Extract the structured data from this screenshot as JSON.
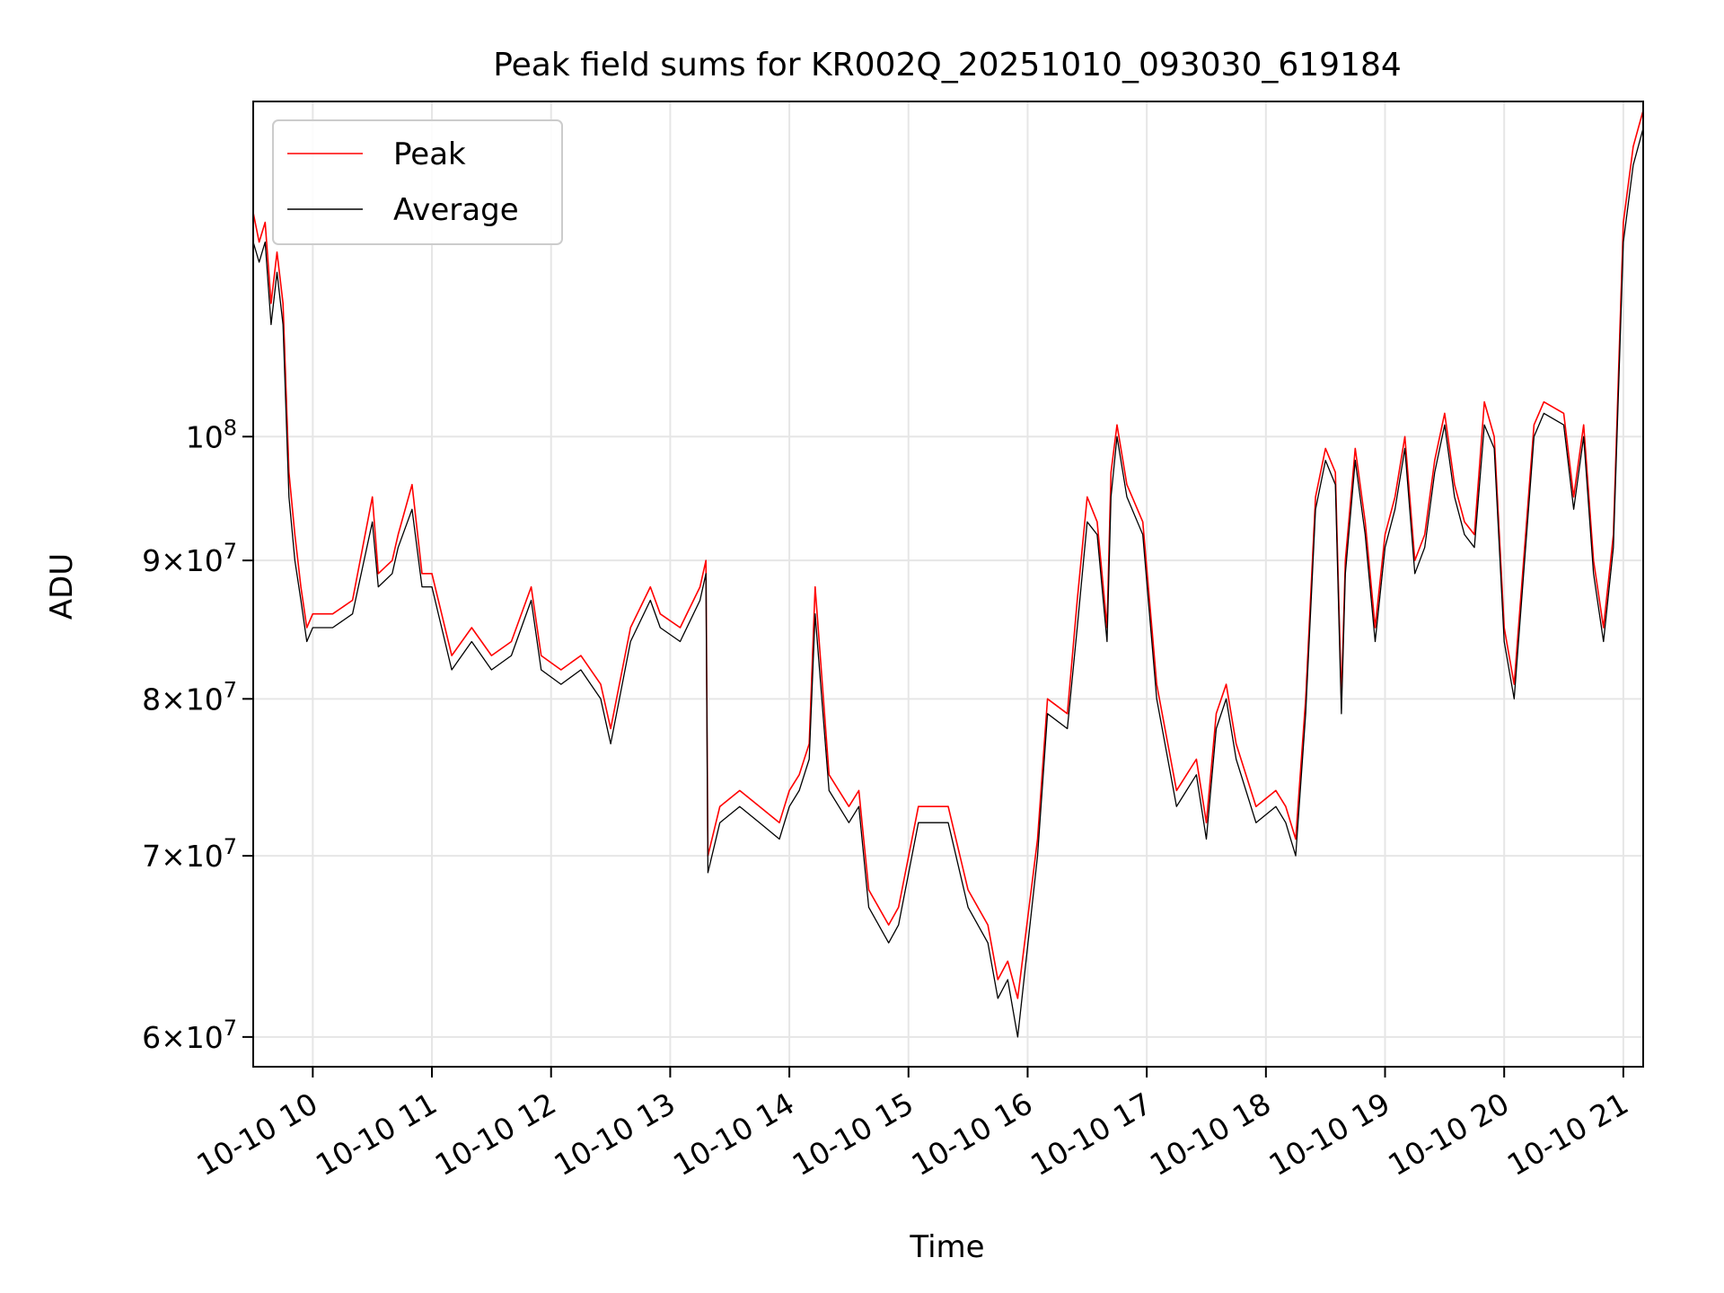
{
  "chart_data": {
    "type": "line",
    "title": "Peak field sums for KR002Q_20251010_093030_619184",
    "xlabel": "Time",
    "ylabel": "ADU",
    "y_scale": "log",
    "xlim": [
      "2025-10-10 09:30",
      "2025-10-10 21:10"
    ],
    "ylim": [
      58500000,
      133000000
    ],
    "grid": true,
    "legend_position": "upper-left",
    "x_ticks": [
      {
        "time": "2025-10-10 10:00",
        "label": "10-10 10"
      },
      {
        "time": "2025-10-10 11:00",
        "label": "10-10 11"
      },
      {
        "time": "2025-10-10 12:00",
        "label": "10-10 12"
      },
      {
        "time": "2025-10-10 13:00",
        "label": "10-10 13"
      },
      {
        "time": "2025-10-10 14:00",
        "label": "10-10 14"
      },
      {
        "time": "2025-10-10 15:00",
        "label": "10-10 15"
      },
      {
        "time": "2025-10-10 16:00",
        "label": "10-10 16"
      },
      {
        "time": "2025-10-10 17:00",
        "label": "10-10 17"
      },
      {
        "time": "2025-10-10 18:00",
        "label": "10-10 18"
      },
      {
        "time": "2025-10-10 19:00",
        "label": "10-10 19"
      },
      {
        "time": "2025-10-10 20:00",
        "label": "10-10 20"
      },
      {
        "time": "2025-10-10 21:00",
        "label": "10-10 21"
      }
    ],
    "y_ticks": [
      {
        "value": 60000000,
        "mantissa": "6",
        "exp": "7"
      },
      {
        "value": 70000000,
        "mantissa": "7",
        "exp": "7"
      },
      {
        "value": 80000000,
        "mantissa": "8",
        "exp": "7"
      },
      {
        "value": 90000000,
        "mantissa": "9",
        "exp": "7"
      },
      {
        "value": 100000000,
        "mantissa": "",
        "exp": "8"
      }
    ],
    "series": [
      {
        "name": "Peak",
        "color": "#ff0000",
        "x": [
          "2025-10-10 09:30",
          "2025-10-10 09:33",
          "2025-10-10 09:36",
          "2025-10-10 09:39",
          "2025-10-10 09:42",
          "2025-10-10 09:45",
          "2025-10-10 09:48",
          "2025-10-10 09:51",
          "2025-10-10 09:54",
          "2025-10-10 09:57",
          "2025-10-10 10:00",
          "2025-10-10 10:10",
          "2025-10-10 10:20",
          "2025-10-10 10:30",
          "2025-10-10 10:33",
          "2025-10-10 10:40",
          "2025-10-10 10:43",
          "2025-10-10 10:50",
          "2025-10-10 10:55",
          "2025-10-10 11:00",
          "2025-10-10 11:10",
          "2025-10-10 11:20",
          "2025-10-10 11:30",
          "2025-10-10 11:40",
          "2025-10-10 11:50",
          "2025-10-10 11:55",
          "2025-10-10 12:05",
          "2025-10-10 12:15",
          "2025-10-10 12:25",
          "2025-10-10 12:30",
          "2025-10-10 12:40",
          "2025-10-10 12:50",
          "2025-10-10 12:55",
          "2025-10-10 13:05",
          "2025-10-10 13:15",
          "2025-10-10 13:18",
          "2025-10-10 13:19",
          "2025-10-10 13:25",
          "2025-10-10 13:35",
          "2025-10-10 13:45",
          "2025-10-10 13:55",
          "2025-10-10 14:00",
          "2025-10-10 14:05",
          "2025-10-10 14:10",
          "2025-10-10 14:13",
          "2025-10-10 14:20",
          "2025-10-10 14:30",
          "2025-10-10 14:35",
          "2025-10-10 14:40",
          "2025-10-10 14:50",
          "2025-10-10 14:55",
          "2025-10-10 15:05",
          "2025-10-10 15:20",
          "2025-10-10 15:30",
          "2025-10-10 15:40",
          "2025-10-10 15:45",
          "2025-10-10 15:50",
          "2025-10-10 15:55",
          "2025-10-10 16:05",
          "2025-10-10 16:10",
          "2025-10-10 16:20",
          "2025-10-10 16:25",
          "2025-10-10 16:30",
          "2025-10-10 16:35",
          "2025-10-10 16:40",
          "2025-10-10 16:42",
          "2025-10-10 16:45",
          "2025-10-10 16:50",
          "2025-10-10 16:58",
          "2025-10-10 17:05",
          "2025-10-10 17:15",
          "2025-10-10 17:25",
          "2025-10-10 17:30",
          "2025-10-10 17:35",
          "2025-10-10 17:40",
          "2025-10-10 17:45",
          "2025-10-10 17:55",
          "2025-10-10 18:05",
          "2025-10-10 18:10",
          "2025-10-10 18:15",
          "2025-10-10 18:20",
          "2025-10-10 18:25",
          "2025-10-10 18:30",
          "2025-10-10 18:35",
          "2025-10-10 18:38",
          "2025-10-10 18:40",
          "2025-10-10 18:45",
          "2025-10-10 18:50",
          "2025-10-10 18:55",
          "2025-10-10 19:00",
          "2025-10-10 19:05",
          "2025-10-10 19:10",
          "2025-10-10 19:15",
          "2025-10-10 19:20",
          "2025-10-10 19:25",
          "2025-10-10 19:30",
          "2025-10-10 19:35",
          "2025-10-10 19:40",
          "2025-10-10 19:45",
          "2025-10-10 19:50",
          "2025-10-10 19:55",
          "2025-10-10 20:00",
          "2025-10-10 20:05",
          "2025-10-10 20:15",
          "2025-10-10 20:20",
          "2025-10-10 20:30",
          "2025-10-10 20:35",
          "2025-10-10 20:40",
          "2025-10-10 20:45",
          "2025-10-10 20:50",
          "2025-10-10 20:55",
          "2025-10-10 21:00",
          "2025-10-10 21:05",
          "2025-10-10 21:10"
        ],
        "values": [
          121000000,
          118000000,
          120000000,
          112000000,
          117000000,
          112000000,
          97000000,
          92000000,
          88000000,
          85000000,
          86000000,
          86000000,
          87000000,
          95000000,
          89000000,
          90000000,
          92000000,
          96000000,
          89000000,
          89000000,
          83000000,
          85000000,
          83000000,
          84000000,
          88000000,
          83000000,
          82000000,
          83000000,
          81000000,
          78000000,
          85000000,
          88000000,
          86000000,
          85000000,
          88000000,
          90000000,
          70000000,
          73000000,
          74000000,
          73000000,
          72000000,
          74000000,
          75000000,
          77000000,
          88000000,
          75000000,
          73000000,
          74000000,
          68000000,
          66000000,
          67000000,
          73000000,
          73000000,
          68000000,
          66000000,
          63000000,
          64000000,
          62000000,
          71000000,
          80000000,
          79000000,
          87000000,
          95000000,
          93000000,
          85000000,
          97000000,
          101000000,
          96000000,
          93000000,
          81000000,
          74000000,
          76000000,
          72000000,
          79000000,
          81000000,
          77000000,
          73000000,
          74000000,
          73000000,
          71000000,
          80000000,
          95000000,
          99000000,
          97000000,
          80000000,
          90000000,
          99000000,
          93000000,
          85000000,
          92000000,
          95000000,
          100000000,
          90000000,
          92000000,
          98000000,
          102000000,
          96000000,
          93000000,
          92000000,
          103000000,
          100000000,
          85000000,
          81000000,
          101000000,
          103000000,
          102000000,
          95000000,
          101000000,
          90000000,
          85000000,
          92000000,
          120000000,
          128000000,
          132000000
        ]
      },
      {
        "name": "Average",
        "color": "#000000",
        "x": [
          "2025-10-10 09:30",
          "2025-10-10 09:33",
          "2025-10-10 09:36",
          "2025-10-10 09:39",
          "2025-10-10 09:42",
          "2025-10-10 09:45",
          "2025-10-10 09:48",
          "2025-10-10 09:51",
          "2025-10-10 09:54",
          "2025-10-10 09:57",
          "2025-10-10 10:00",
          "2025-10-10 10:10",
          "2025-10-10 10:20",
          "2025-10-10 10:30",
          "2025-10-10 10:33",
          "2025-10-10 10:40",
          "2025-10-10 10:43",
          "2025-10-10 10:50",
          "2025-10-10 10:55",
          "2025-10-10 11:00",
          "2025-10-10 11:10",
          "2025-10-10 11:20",
          "2025-10-10 11:30",
          "2025-10-10 11:40",
          "2025-10-10 11:50",
          "2025-10-10 11:55",
          "2025-10-10 12:05",
          "2025-10-10 12:15",
          "2025-10-10 12:25",
          "2025-10-10 12:30",
          "2025-10-10 12:40",
          "2025-10-10 12:50",
          "2025-10-10 12:55",
          "2025-10-10 13:05",
          "2025-10-10 13:15",
          "2025-10-10 13:18",
          "2025-10-10 13:19",
          "2025-10-10 13:25",
          "2025-10-10 13:35",
          "2025-10-10 13:45",
          "2025-10-10 13:55",
          "2025-10-10 14:00",
          "2025-10-10 14:05",
          "2025-10-10 14:10",
          "2025-10-10 14:13",
          "2025-10-10 14:20",
          "2025-10-10 14:30",
          "2025-10-10 14:35",
          "2025-10-10 14:40",
          "2025-10-10 14:50",
          "2025-10-10 14:55",
          "2025-10-10 15:05",
          "2025-10-10 15:20",
          "2025-10-10 15:30",
          "2025-10-10 15:40",
          "2025-10-10 15:45",
          "2025-10-10 15:50",
          "2025-10-10 15:55",
          "2025-10-10 16:05",
          "2025-10-10 16:10",
          "2025-10-10 16:20",
          "2025-10-10 16:25",
          "2025-10-10 16:30",
          "2025-10-10 16:35",
          "2025-10-10 16:40",
          "2025-10-10 16:42",
          "2025-10-10 16:45",
          "2025-10-10 16:50",
          "2025-10-10 16:58",
          "2025-10-10 17:05",
          "2025-10-10 17:15",
          "2025-10-10 17:25",
          "2025-10-10 17:30",
          "2025-10-10 17:35",
          "2025-10-10 17:40",
          "2025-10-10 17:45",
          "2025-10-10 17:55",
          "2025-10-10 18:05",
          "2025-10-10 18:10",
          "2025-10-10 18:15",
          "2025-10-10 18:20",
          "2025-10-10 18:25",
          "2025-10-10 18:30",
          "2025-10-10 18:35",
          "2025-10-10 18:38",
          "2025-10-10 18:40",
          "2025-10-10 18:45",
          "2025-10-10 18:50",
          "2025-10-10 18:55",
          "2025-10-10 19:00",
          "2025-10-10 19:05",
          "2025-10-10 19:10",
          "2025-10-10 19:15",
          "2025-10-10 19:20",
          "2025-10-10 19:25",
          "2025-10-10 19:30",
          "2025-10-10 19:35",
          "2025-10-10 19:40",
          "2025-10-10 19:45",
          "2025-10-10 19:50",
          "2025-10-10 19:55",
          "2025-10-10 20:00",
          "2025-10-10 20:05",
          "2025-10-10 20:15",
          "2025-10-10 20:20",
          "2025-10-10 20:30",
          "2025-10-10 20:35",
          "2025-10-10 20:40",
          "2025-10-10 20:45",
          "2025-10-10 20:50",
          "2025-10-10 20:55",
          "2025-10-10 21:00",
          "2025-10-10 21:05",
          "2025-10-10 21:10"
        ],
        "values": [
          118000000,
          116000000,
          118000000,
          110000000,
          115000000,
          110000000,
          95000000,
          90000000,
          87000000,
          84000000,
          85000000,
          85000000,
          86000000,
          93000000,
          88000000,
          89000000,
          91000000,
          94000000,
          88000000,
          88000000,
          82000000,
          84000000,
          82000000,
          83000000,
          87000000,
          82000000,
          81000000,
          82000000,
          80000000,
          77000000,
          84000000,
          87000000,
          85000000,
          84000000,
          87000000,
          89000000,
          69000000,
          72000000,
          73000000,
          72000000,
          71000000,
          73000000,
          74000000,
          76000000,
          86000000,
          74000000,
          72000000,
          73000000,
          67000000,
          65000000,
          66000000,
          72000000,
          72000000,
          67000000,
          65000000,
          62000000,
          63000000,
          60000000,
          70000000,
          79000000,
          78000000,
          85000000,
          93000000,
          92000000,
          84000000,
          95000000,
          100000000,
          95000000,
          92000000,
          80000000,
          73000000,
          75000000,
          71000000,
          78000000,
          80000000,
          76000000,
          72000000,
          73000000,
          72000000,
          70000000,
          79000000,
          94000000,
          98000000,
          96000000,
          79000000,
          89000000,
          98000000,
          92000000,
          84000000,
          91000000,
          94000000,
          99000000,
          89000000,
          91000000,
          97000000,
          101000000,
          95000000,
          92000000,
          91000000,
          101000000,
          99000000,
          84000000,
          80000000,
          100000000,
          102000000,
          101000000,
          94000000,
          100000000,
          89000000,
          84000000,
          91000000,
          118000000,
          126000000,
          130000000
        ]
      }
    ]
  }
}
